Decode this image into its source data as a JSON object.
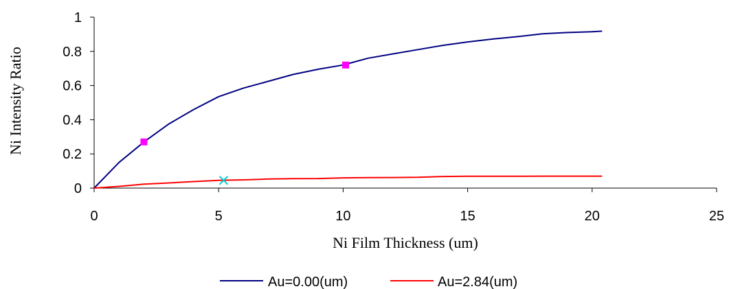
{
  "chart_data": {
    "type": "line",
    "xlabel": "Ni Film Thickness (um)",
    "ylabel": "Ni Intensity Ratio",
    "xlim": [
      0,
      25
    ],
    "ylim": [
      0,
      1
    ],
    "x_ticks": [
      0,
      5,
      10,
      15,
      20,
      25
    ],
    "y_ticks": [
      0,
      0.2,
      0.4,
      0.6,
      0.8,
      1
    ],
    "x_tick_labels": [
      "0",
      "5",
      "10",
      "15",
      "20",
      "25"
    ],
    "y_tick_labels": [
      "0",
      "0.2",
      "0.4",
      "0.6",
      "0.8",
      "1"
    ],
    "grid": false,
    "legend_position": "bottom",
    "series": [
      {
        "name": "Au=0.00(um)",
        "color": "#000080",
        "x": [
          0,
          1,
          2,
          3,
          4,
          5,
          6,
          7,
          8,
          9,
          10,
          11,
          12,
          13,
          14,
          15,
          16,
          17,
          18,
          19,
          20,
          20.4
        ],
        "y": [
          0,
          0.15,
          0.27,
          0.375,
          0.46,
          0.535,
          0.585,
          0.625,
          0.665,
          0.695,
          0.72,
          0.76,
          0.785,
          0.81,
          0.835,
          0.855,
          0.872,
          0.886,
          0.903,
          0.91,
          0.915,
          0.918
        ]
      },
      {
        "name": "Au=2.84(um)",
        "color": "#ff0000",
        "x": [
          0,
          1,
          2,
          3,
          4,
          5,
          6,
          7,
          8,
          9,
          10,
          11,
          12,
          13,
          14,
          15,
          16,
          17,
          18,
          19,
          20,
          20.4
        ],
        "y": [
          0,
          0.01,
          0.023,
          0.03,
          0.038,
          0.045,
          0.048,
          0.053,
          0.055,
          0.056,
          0.06,
          0.061,
          0.062,
          0.063,
          0.068,
          0.069,
          0.069,
          0.069,
          0.07,
          0.07,
          0.07,
          0.07
        ]
      }
    ],
    "markers": [
      {
        "series": "Au=0.00(um)",
        "shape": "square",
        "color": "#ff00ff",
        "x": 2,
        "y": 0.27
      },
      {
        "series": "Au=0.00(um)",
        "shape": "square",
        "color": "#ff00ff",
        "x": 10.1,
        "y": 0.72
      },
      {
        "series": "Au=2.84(um)",
        "shape": "cross",
        "color": "#00cccc",
        "x": 5.2,
        "y": 0.045
      }
    ]
  }
}
